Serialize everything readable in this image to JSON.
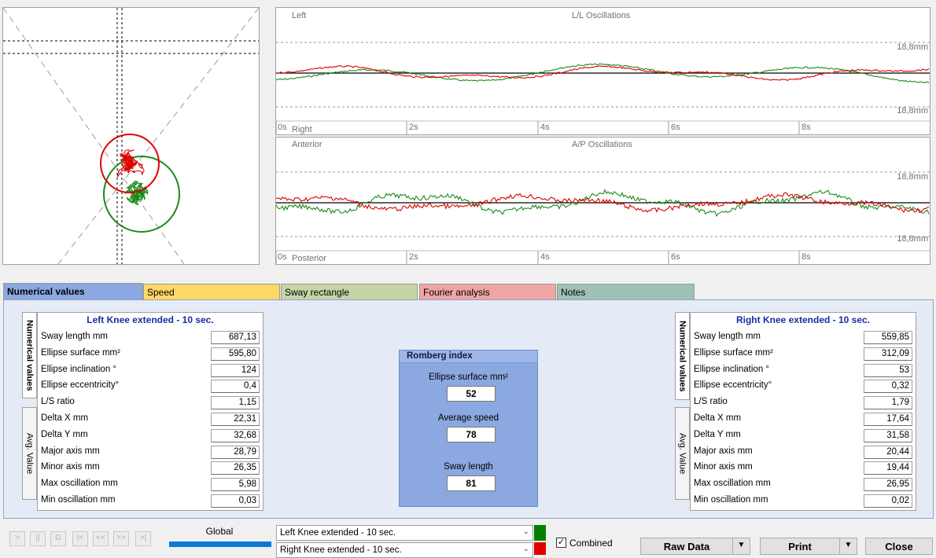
{
  "ll_chart": {
    "left_label": "Left",
    "right_label": "Right",
    "title": "L/L Oscillations",
    "top_scale": "18,8mm",
    "bottom_scale": "18,8mm",
    "x_ticks": [
      "0s",
      "2s",
      "4s",
      "6s",
      "8s"
    ]
  },
  "ap_chart": {
    "top_label": "Anterior",
    "bottom_label": "Posterior",
    "title": "A/P Oscillations",
    "top_scale": "18,8mm",
    "bottom_scale": "18,8mm",
    "x_ticks": [
      "0s",
      "2s",
      "4s",
      "6s",
      "8s"
    ]
  },
  "tabs": [
    {
      "label": "Numerical values",
      "color": "#8ba8e0"
    },
    {
      "label": "Speed",
      "color": "#ffd966"
    },
    {
      "label": "Sway rectangle",
      "color": "#c5d5a5"
    },
    {
      "label": "Fourier analysis",
      "color": "#f0a5a5"
    },
    {
      "label": "Notes",
      "color": "#9fc1b3"
    }
  ],
  "side_tabs": {
    "numerical": "Numerical values",
    "avg": "Avg. Value"
  },
  "left_panel": {
    "title": "Left Knee extended - 10 sec.",
    "rows": [
      {
        "label": "Sway length mm",
        "value": "687,13"
      },
      {
        "label": "Ellipse surface mm²",
        "value": "595,80"
      },
      {
        "label": "Ellipse inclination °",
        "value": "124"
      },
      {
        "label": "Ellipse eccentricity°",
        "value": "0,4"
      },
      {
        "label": "L/S ratio",
        "value": "1,15"
      },
      {
        "label": "Delta X mm",
        "value": "22,31"
      },
      {
        "label": "Delta Y mm",
        "value": "32,68"
      },
      {
        "label": "Major axis mm",
        "value": "28,79"
      },
      {
        "label": "Minor axis mm",
        "value": "26,35"
      },
      {
        "label": "Max oscillation mm",
        "value": "5,98"
      },
      {
        "label": "Min oscillation mm",
        "value": "0,03"
      }
    ]
  },
  "right_panel": {
    "title": "Right Knee extended - 10 sec.",
    "rows": [
      {
        "label": "Sway length mm",
        "value": "559,85"
      },
      {
        "label": "Ellipse surface mm²",
        "value": "312,09"
      },
      {
        "label": "Ellipse inclination °",
        "value": "53"
      },
      {
        "label": "Ellipse eccentricity°",
        "value": "0,32"
      },
      {
        "label": "L/S ratio",
        "value": "1,79"
      },
      {
        "label": "Delta X mm",
        "value": "17,64"
      },
      {
        "label": "Delta Y mm",
        "value": "31,58"
      },
      {
        "label": "Major axis mm",
        "value": "20,44"
      },
      {
        "label": "Minor axis mm",
        "value": "19,44"
      },
      {
        "label": "Max oscillation mm",
        "value": "26,95"
      },
      {
        "label": "Min oscillation mm",
        "value": "0,02"
      }
    ]
  },
  "romberg": {
    "title": "Romberg index",
    "items": [
      {
        "label": "Ellipse surface mm²",
        "value": "52"
      },
      {
        "label": "Average speed",
        "value": "78"
      },
      {
        "label": "Sway length",
        "value": "81"
      }
    ]
  },
  "toolbar": {
    "nav_buttons": [
      ">",
      "||",
      "G",
      "|<",
      "<<",
      ">>",
      ">|"
    ],
    "global_label": "Global",
    "combo1": "Left Knee extended - 10 sec.",
    "combo2": "Right Knee extended - 10 sec.",
    "combo1_color": "#008000",
    "combo2_color": "#e00000",
    "combined_label": "Combined",
    "combined_checked": true,
    "raw_data": "Raw Data",
    "print": "Print",
    "close": "Close"
  }
}
